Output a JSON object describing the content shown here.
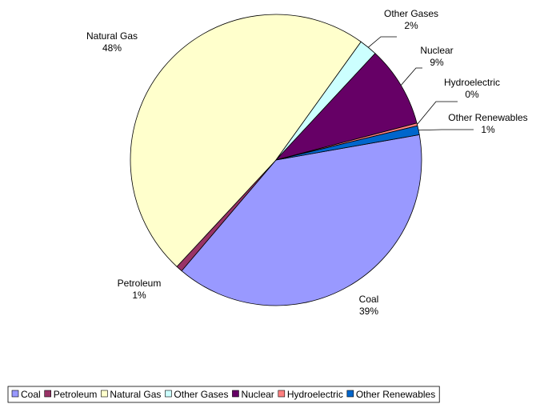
{
  "chart_data": {
    "type": "pie",
    "categories": [
      "Coal",
      "Petroleum",
      "Natural Gas",
      "Other Gases",
      "Nuclear",
      "Hydroelectric",
      "Other Renewables"
    ],
    "values": [
      39,
      0.7,
      48,
      2,
      9,
      0.3,
      1
    ],
    "value_labels": [
      "39%",
      "1%",
      "48%",
      "2%",
      "9%",
      "0%",
      "1%"
    ],
    "colors": [
      "#9999ff",
      "#993366",
      "#ffffcc",
      "#ccffff",
      "#660066",
      "#ff8080",
      "#0066cc"
    ],
    "legend": "bottom"
  }
}
